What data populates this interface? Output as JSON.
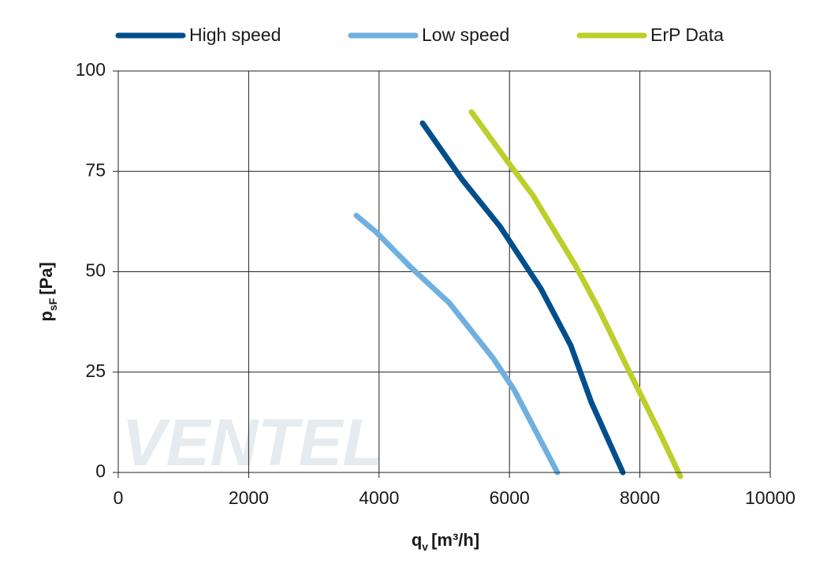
{
  "chart_data": {
    "type": "line",
    "watermark": "VENTEL",
    "xlabel": "q",
    "xlabel_sub": "v",
    "xlabel_unit": "[m³/h]",
    "ylabel": "p",
    "ylabel_sub": "sF",
    "ylabel_unit": "[Pa]",
    "xlim": [
      0,
      10000
    ],
    "xticks": [
      0,
      2000,
      4000,
      6000,
      8000,
      10000
    ],
    "ylim": [
      0,
      100
    ],
    "yticks": [
      0,
      25,
      50,
      75,
      100
    ],
    "grid": true,
    "legend": "top",
    "series": [
      {
        "name": "High speed",
        "color": "#004f8c",
        "x": [
          4667,
          5272,
          5853,
          6481,
          6941,
          7255,
          7739
        ],
        "values": [
          87,
          73,
          61.3,
          45.8,
          31.6,
          17.5,
          0
        ]
      },
      {
        "name": "Low speed",
        "color": "#6fb0e0",
        "x": [
          3652,
          3966,
          4474,
          5079,
          5756,
          6071,
          6735
        ],
        "values": [
          64,
          59.7,
          51.3,
          42.2,
          28.3,
          20.6,
          0
        ]
      },
      {
        "name": "ErP Data",
        "color": "#bccf2a",
        "x": [
          5417,
          5973,
          6360,
          7013,
          7376,
          7860,
          8295,
          8622
        ],
        "values": [
          89.8,
          77.4,
          69,
          51.5,
          40.5,
          24.4,
          10.2,
          -1
        ]
      }
    ]
  }
}
